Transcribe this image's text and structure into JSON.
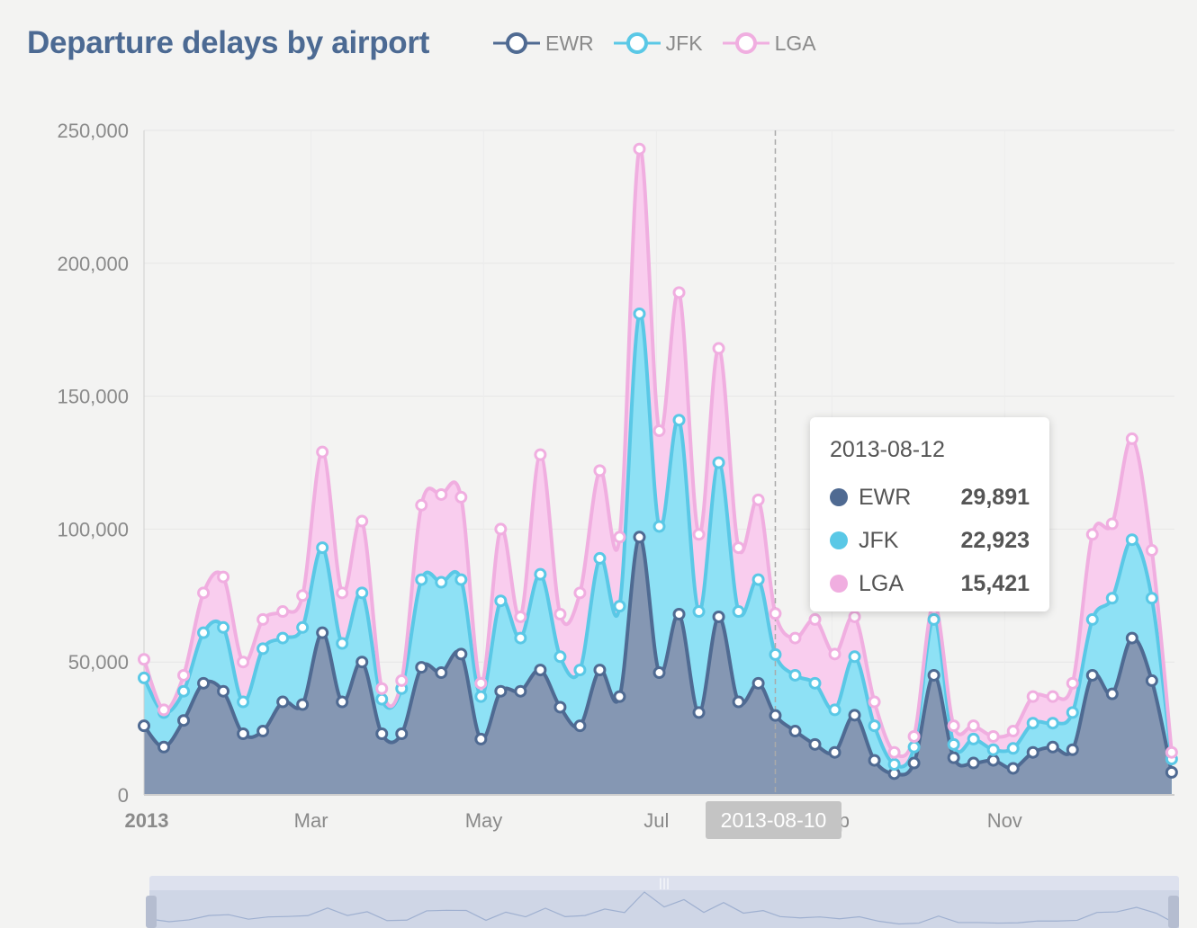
{
  "title": "Departure delays by airport",
  "colors": {
    "EWR": "#4f6a92",
    "JFK": "#5ac8e6",
    "LGA": "#f0aee0"
  },
  "tooltip": {
    "date": "2013-08-12",
    "rows": [
      {
        "name": "EWR",
        "value": "29,891",
        "color": "#4f6a92"
      },
      {
        "name": "JFK",
        "value": "22,923",
        "color": "#5ac8e6"
      },
      {
        "name": "LGA",
        "value": "15,421",
        "color": "#f0aee0"
      }
    ]
  },
  "crosshair_label": "2013-08-10",
  "chart_data": {
    "type": "area",
    "stacked": true,
    "title": "Departure delays by airport",
    "xlabel": "",
    "ylabel": "",
    "ylim": [
      0,
      250000
    ],
    "yticks": [
      0,
      50000,
      100000,
      150000,
      200000,
      250000
    ],
    "ytick_labels": [
      "0",
      "50,000",
      "100,000",
      "150,000",
      "200,000",
      "250,000"
    ],
    "xticks": [
      "2013-01-01",
      "2013-03-01",
      "2013-05-01",
      "2013-07-01",
      "2013-09-01",
      "2013-11-01"
    ],
    "xtick_labels": [
      "2013",
      "Mar",
      "May",
      "Jul",
      "Sep",
      "Nov"
    ],
    "xlim": [
      "2013-01-01",
      "2013-12-31"
    ],
    "legend_position": "top",
    "x": [
      "2013-01-01",
      "2013-01-08",
      "2013-01-15",
      "2013-01-22",
      "2013-01-29",
      "2013-02-05",
      "2013-02-12",
      "2013-02-19",
      "2013-02-26",
      "2013-03-05",
      "2013-03-12",
      "2013-03-19",
      "2013-03-26",
      "2013-04-02",
      "2013-04-09",
      "2013-04-16",
      "2013-04-23",
      "2013-04-30",
      "2013-05-07",
      "2013-05-14",
      "2013-05-21",
      "2013-05-28",
      "2013-06-04",
      "2013-06-11",
      "2013-06-18",
      "2013-06-25",
      "2013-07-02",
      "2013-07-09",
      "2013-07-16",
      "2013-07-23",
      "2013-07-30",
      "2013-08-06",
      "2013-08-12",
      "2013-08-19",
      "2013-08-26",
      "2013-09-02",
      "2013-09-09",
      "2013-09-16",
      "2013-09-23",
      "2013-09-30",
      "2013-10-07",
      "2013-10-14",
      "2013-10-21",
      "2013-10-28",
      "2013-11-04",
      "2013-11-11",
      "2013-11-18",
      "2013-11-25",
      "2013-12-02",
      "2013-12-09",
      "2013-12-16",
      "2013-12-23",
      "2013-12-30"
    ],
    "series": [
      {
        "name": "EWR",
        "values": [
          26000,
          18000,
          28000,
          42000,
          39000,
          23000,
          24000,
          35000,
          34000,
          61000,
          35000,
          50000,
          23000,
          23000,
          48000,
          46000,
          53000,
          21000,
          39000,
          39000,
          47000,
          33000,
          26000,
          47000,
          37000,
          97000,
          46000,
          68000,
          31000,
          67000,
          35000,
          42000,
          29891,
          24000,
          19000,
          16000,
          30000,
          13000,
          8000,
          12000,
          45000,
          14000,
          12000,
          13000,
          10000,
          16000,
          18000,
          17000,
          45000,
          38000,
          59000,
          43000,
          8500
        ]
      },
      {
        "name": "JFK",
        "values": [
          18000,
          13000,
          11000,
          19000,
          24000,
          12000,
          31000,
          24000,
          29000,
          32000,
          22000,
          26000,
          13000,
          17000,
          33000,
          34000,
          28000,
          16000,
          34000,
          20000,
          36000,
          19000,
          21000,
          42000,
          34000,
          84000,
          55000,
          73000,
          38000,
          58000,
          34000,
          39000,
          22923,
          21000,
          23000,
          16000,
          22000,
          13000,
          3500,
          6000,
          21000,
          5000,
          9000,
          4000,
          7500,
          11000,
          9000,
          14000,
          21000,
          36000,
          37000,
          31000,
          5000
        ]
      },
      {
        "name": "LGA",
        "values": [
          7000,
          1000,
          6000,
          15000,
          19000,
          15000,
          11000,
          10000,
          12000,
          36000,
          19000,
          27000,
          4000,
          3000,
          28000,
          33000,
          31000,
          5000,
          27000,
          8000,
          45000,
          16000,
          29000,
          33000,
          26000,
          62000,
          36000,
          48000,
          29000,
          43000,
          24000,
          30000,
          15421,
          14000,
          24000,
          21000,
          15000,
          9000,
          4500,
          4000,
          6000,
          7000,
          5000,
          5000,
          6500,
          10000,
          10000,
          11000,
          32000,
          28000,
          38000,
          18000,
          2500
        ]
      }
    ]
  }
}
